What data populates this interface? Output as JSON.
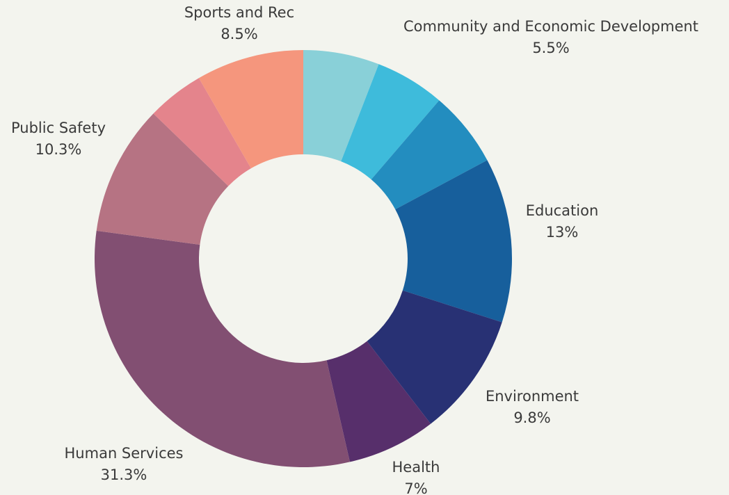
{
  "chart_data": {
    "type": "pie",
    "donut": true,
    "slices": [
      {
        "label": "",
        "value": 6.0,
        "color": "#89d0d8",
        "pct_label": ""
      },
      {
        "label": "Community and Economic Development",
        "value": 5.5,
        "color": "#3ebbdb",
        "pct_label": "5.5%"
      },
      {
        "label": "",
        "value": 6.0,
        "color": "#238dbf",
        "pct_label": ""
      },
      {
        "label": "Education",
        "value": 13.0,
        "color": "#175f9c",
        "pct_label": "13%"
      },
      {
        "label": "Environment",
        "value": 9.8,
        "color": "#283174",
        "pct_label": "9.8%"
      },
      {
        "label": "Health",
        "value": 7.0,
        "color": "#572f6b",
        "pct_label": "7%"
      },
      {
        "label": "Human Services",
        "value": 31.3,
        "color": "#824f72",
        "pct_label": "31.3%"
      },
      {
        "label": "Public Safety",
        "value": 10.3,
        "color": "#b67383",
        "pct_label": "10.3%"
      },
      {
        "label": "",
        "value": 4.5,
        "color": "#e4848c",
        "pct_label": ""
      },
      {
        "label": "Sports and Rec",
        "value": 8.5,
        "color": "#f5967d",
        "pct_label": "8.5%"
      }
    ]
  }
}
